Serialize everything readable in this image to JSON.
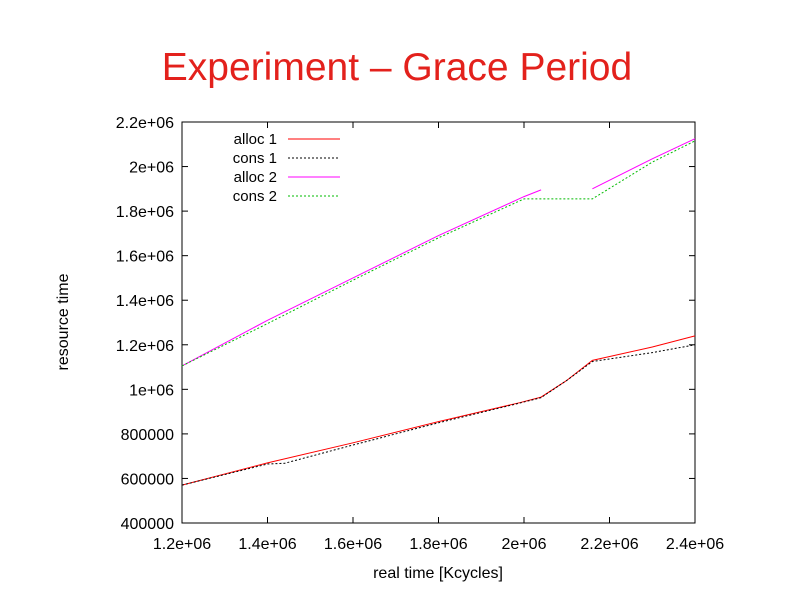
{
  "slide": {
    "title": "Experiment – Grace Period"
  },
  "chart_data": {
    "type": "line",
    "title": "",
    "xlabel": "real time [Kcycles]",
    "ylabel": "resource time",
    "xlim": [
      1200000,
      2400000
    ],
    "ylim": [
      400000,
      2200000
    ],
    "xticks": [
      1200000,
      1400000,
      1600000,
      1800000,
      2000000,
      2200000,
      2400000
    ],
    "xtick_labels": [
      "1.2e+06",
      "1.4e+06",
      "1.6e+06",
      "1.8e+06",
      "2e+06",
      "2.2e+06",
      "2.4e+06"
    ],
    "yticks": [
      400000,
      600000,
      800000,
      1000000,
      1200000,
      1400000,
      1600000,
      1800000,
      2000000,
      2200000
    ],
    "ytick_labels": [
      "400000",
      "600000",
      "800000",
      "1e+06",
      "1.2e+06",
      "1.4e+06",
      "1.6e+06",
      "1.8e+06",
      "2e+06",
      "2.2e+06"
    ],
    "grid": false,
    "legend_position": "top-left",
    "series": [
      {
        "name": "alloc 1",
        "color": "#ff0000",
        "dash": "solid",
        "x": [
          1200000,
          1400000,
          1600000,
          1800000,
          1990000,
          2040000,
          2100000,
          2160000,
          2300000,
          2400000
        ],
        "y": [
          570000,
          670000,
          760000,
          855000,
          940000,
          965000,
          1040000,
          1130000,
          1190000,
          1240000
        ]
      },
      {
        "name": "cons 1",
        "color": "#000000",
        "dash": "dotted",
        "x": [
          1200000,
          1400000,
          1440000,
          1600000,
          1800000,
          1990000,
          2040000,
          2100000,
          2160000,
          2300000,
          2400000
        ],
        "y": [
          570000,
          665000,
          668000,
          750000,
          850000,
          938000,
          963000,
          1040000,
          1125000,
          1165000,
          1200000
        ]
      },
      {
        "name": "alloc 2",
        "color": "#ff00ff",
        "dash": "solid",
        "x": [
          1200000,
          1400000,
          1600000,
          1800000,
          2000000,
          2040000,
          null,
          2160000,
          2300000,
          2400000
        ],
        "y": [
          1105000,
          1310000,
          1500000,
          1690000,
          1865000,
          1895000,
          null,
          1900000,
          2035000,
          2125000
        ]
      },
      {
        "name": "cons 2",
        "color": "#00bb00",
        "dash": "dotted",
        "x": [
          1200000,
          1400000,
          1600000,
          1800000,
          2000000,
          2160000,
          2300000,
          2400000
        ],
        "y": [
          1105000,
          1295000,
          1490000,
          1680000,
          1855000,
          1855000,
          2020000,
          2115000
        ]
      }
    ]
  }
}
